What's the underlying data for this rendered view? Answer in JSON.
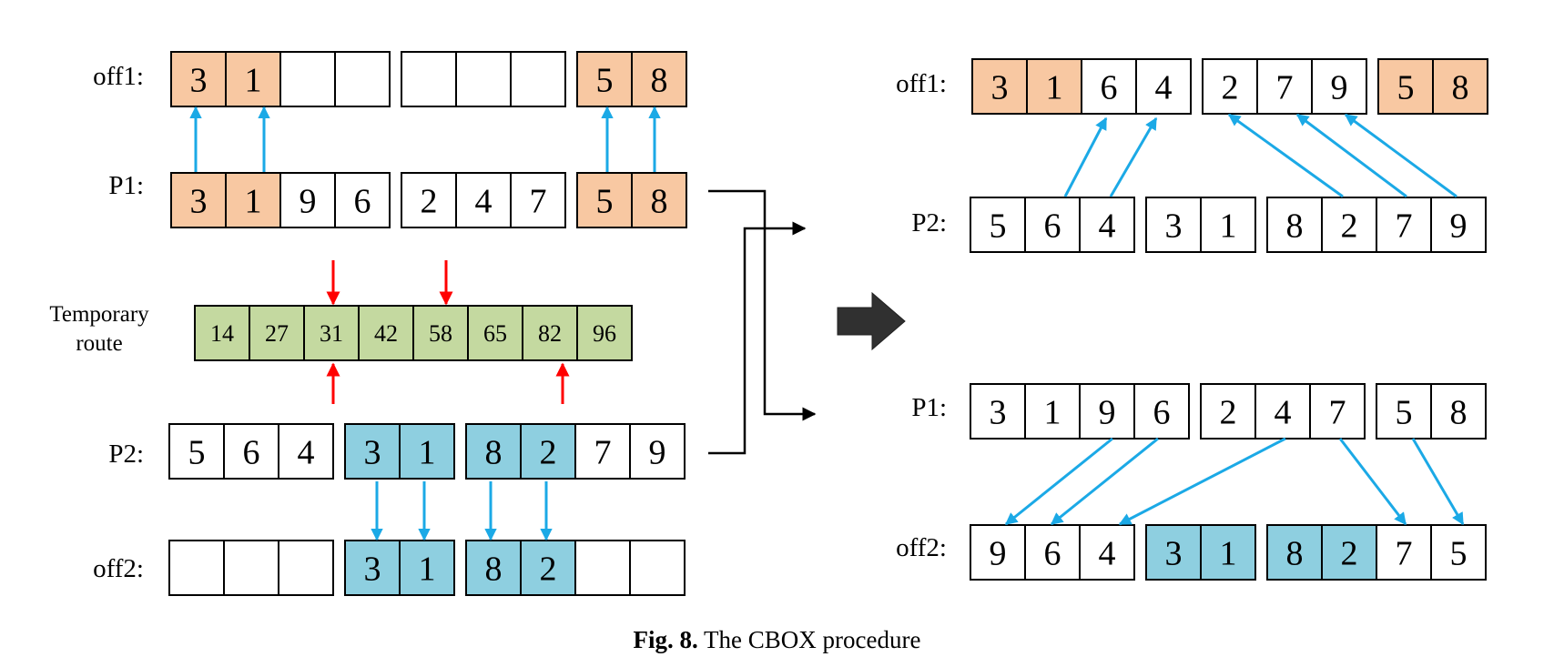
{
  "colors": {
    "orange": "#f8c8a2",
    "blue": "#8ecfe0",
    "green": "#c4d9a0",
    "arrow_blue": "#1ba9e6",
    "arrow_red": "#ff0000",
    "stroke": "#000000"
  },
  "icons": {
    "transition": "big-right-arrow-icon"
  },
  "left": {
    "off1": {
      "label": "off1:",
      "groups": [
        [
          {
            "v": "3",
            "c": "orange"
          },
          {
            "v": "1",
            "c": "orange"
          },
          {
            "v": "",
            "c": "white"
          },
          {
            "v": "",
            "c": "white"
          }
        ],
        [
          {
            "v": "",
            "c": "white"
          },
          {
            "v": "",
            "c": "white"
          },
          {
            "v": "",
            "c": "white"
          }
        ],
        [
          {
            "v": "5",
            "c": "orange"
          },
          {
            "v": "8",
            "c": "orange"
          }
        ]
      ]
    },
    "p1": {
      "label": "P1:",
      "groups": [
        [
          {
            "v": "3",
            "c": "orange"
          },
          {
            "v": "1",
            "c": "orange"
          },
          {
            "v": "9",
            "c": "white"
          },
          {
            "v": "6",
            "c": "white"
          }
        ],
        [
          {
            "v": "2",
            "c": "white"
          },
          {
            "v": "4",
            "c": "white"
          },
          {
            "v": "7",
            "c": "white"
          }
        ],
        [
          {
            "v": "5",
            "c": "orange"
          },
          {
            "v": "8",
            "c": "orange"
          }
        ]
      ]
    },
    "temporary": {
      "label_line1": "Temporary",
      "label_line2": "route",
      "cells": [
        "14",
        "27",
        "31",
        "42",
        "58",
        "65",
        "82",
        "96"
      ]
    },
    "p2": {
      "label": "P2:",
      "groups": [
        [
          {
            "v": "5",
            "c": "white"
          },
          {
            "v": "6",
            "c": "white"
          },
          {
            "v": "4",
            "c": "white"
          }
        ],
        [
          {
            "v": "3",
            "c": "blue"
          },
          {
            "v": "1",
            "c": "blue"
          }
        ],
        [
          {
            "v": "8",
            "c": "blue"
          },
          {
            "v": "2",
            "c": "blue"
          },
          {
            "v": "7",
            "c": "white"
          },
          {
            "v": "9",
            "c": "white"
          }
        ]
      ]
    },
    "off2": {
      "label": "off2:",
      "groups": [
        [
          {
            "v": "",
            "c": "white"
          },
          {
            "v": "",
            "c": "white"
          },
          {
            "v": "",
            "c": "white"
          }
        ],
        [
          {
            "v": "3",
            "c": "blue"
          },
          {
            "v": "1",
            "c": "blue"
          }
        ],
        [
          {
            "v": "8",
            "c": "blue"
          },
          {
            "v": "2",
            "c": "blue"
          },
          {
            "v": "",
            "c": "white"
          },
          {
            "v": "",
            "c": "white"
          }
        ]
      ]
    }
  },
  "right": {
    "off1": {
      "label": "off1:",
      "groups": [
        [
          {
            "v": "3",
            "c": "orange"
          },
          {
            "v": "1",
            "c": "orange"
          },
          {
            "v": "6",
            "c": "white"
          },
          {
            "v": "4",
            "c": "white"
          }
        ],
        [
          {
            "v": "2",
            "c": "white"
          },
          {
            "v": "7",
            "c": "white"
          },
          {
            "v": "9",
            "c": "white"
          }
        ],
        [
          {
            "v": "5",
            "c": "orange"
          },
          {
            "v": "8",
            "c": "orange"
          }
        ]
      ]
    },
    "p2": {
      "label": "P2:",
      "groups": [
        [
          {
            "v": "5",
            "c": "white"
          },
          {
            "v": "6",
            "c": "white"
          },
          {
            "v": "4",
            "c": "white"
          }
        ],
        [
          {
            "v": "3",
            "c": "white"
          },
          {
            "v": "1",
            "c": "white"
          }
        ],
        [
          {
            "v": "8",
            "c": "white"
          },
          {
            "v": "2",
            "c": "white"
          },
          {
            "v": "7",
            "c": "white"
          },
          {
            "v": "9",
            "c": "white"
          }
        ]
      ]
    },
    "p1": {
      "label": "P1:",
      "groups": [
        [
          {
            "v": "3",
            "c": "white"
          },
          {
            "v": "1",
            "c": "white"
          },
          {
            "v": "9",
            "c": "white"
          },
          {
            "v": "6",
            "c": "white"
          }
        ],
        [
          {
            "v": "2",
            "c": "white"
          },
          {
            "v": "4",
            "c": "white"
          },
          {
            "v": "7",
            "c": "white"
          }
        ],
        [
          {
            "v": "5",
            "c": "white"
          },
          {
            "v": "8",
            "c": "white"
          }
        ]
      ]
    },
    "off2": {
      "label": "off2:",
      "groups": [
        [
          {
            "v": "9",
            "c": "white"
          },
          {
            "v": "6",
            "c": "white"
          },
          {
            "v": "4",
            "c": "white"
          }
        ],
        [
          {
            "v": "3",
            "c": "blue"
          },
          {
            "v": "1",
            "c": "blue"
          }
        ],
        [
          {
            "v": "8",
            "c": "blue"
          },
          {
            "v": "2",
            "c": "blue"
          },
          {
            "v": "7",
            "c": "white"
          },
          {
            "v": "5",
            "c": "white"
          }
        ]
      ]
    }
  },
  "caption": {
    "fig": "Fig. 8.",
    "text": "The CBOX procedure"
  }
}
